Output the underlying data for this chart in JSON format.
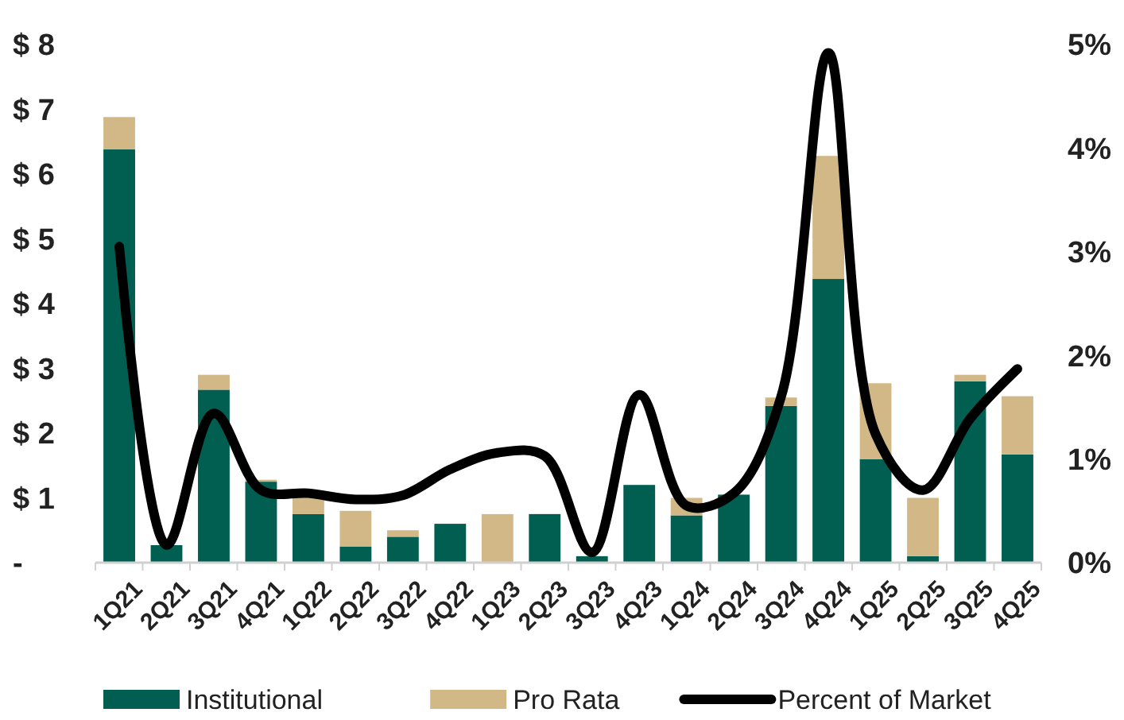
{
  "chart_data": {
    "type": "bar",
    "stacked": true,
    "categories": [
      "1Q21",
      "2Q21",
      "3Q21",
      "4Q21",
      "1Q22",
      "2Q22",
      "3Q22",
      "4Q22",
      "1Q23",
      "2Q23",
      "3Q23",
      "4Q23",
      "1Q24",
      "2Q24",
      "3Q24",
      "4Q24",
      "1Q25",
      "2Q25",
      "3Q25",
      "4Q25"
    ],
    "series": [
      {
        "name": "Institutional",
        "color": "#005f50",
        "values": [
          6.38,
          0.27,
          2.67,
          1.25,
          0.75,
          0.25,
          0.4,
          0.6,
          0,
          0.75,
          0.1,
          1.2,
          0.73,
          1.05,
          2.42,
          4.38,
          1.6,
          0.1,
          2.8,
          1.67
        ]
      },
      {
        "name": "Pro Rata",
        "color": "#d2b887",
        "values": [
          0.5,
          null,
          0.23,
          0.03,
          0.35,
          0.55,
          0.1,
          0,
          0.75,
          0,
          0,
          0,
          0.27,
          null,
          0.13,
          1.9,
          1.17,
          0.9,
          0.1,
          0.9
        ]
      },
      {
        "name": "Percent of Market",
        "type": "line",
        "axis": "y2",
        "color": "#000000",
        "values": [
          3.05,
          0.17,
          1.44,
          0.7,
          0.67,
          0.61,
          0.65,
          0.9,
          1.06,
          1.03,
          0.1,
          1.62,
          0.55,
          0.67,
          1.6,
          4.92,
          1.24,
          0.7,
          1.39,
          1.87
        ]
      }
    ],
    "ylim": [
      0,
      8
    ],
    "yticks": [
      {
        "value": 0,
        "label": "-"
      },
      {
        "value": 1,
        "label": "$ 1"
      },
      {
        "value": 2,
        "label": "$ 2"
      },
      {
        "value": 3,
        "label": "$ 3"
      },
      {
        "value": 4,
        "label": "$ 4"
      },
      {
        "value": 5,
        "label": "$ 5"
      },
      {
        "value": 6,
        "label": "$ 6"
      },
      {
        "value": 7,
        "label": "$ 7"
      },
      {
        "value": 8,
        "label": "$ 8"
      }
    ],
    "y2lim": [
      0,
      5
    ],
    "y2ticks": [
      {
        "value": 0,
        "label": "0%"
      },
      {
        "value": 1,
        "label": "1%"
      },
      {
        "value": 2,
        "label": "2%"
      },
      {
        "value": 3,
        "label": "3%"
      },
      {
        "value": 4,
        "label": "4%"
      },
      {
        "value": 5,
        "label": "5%"
      }
    ],
    "grid": false,
    "legend": "bottom"
  }
}
